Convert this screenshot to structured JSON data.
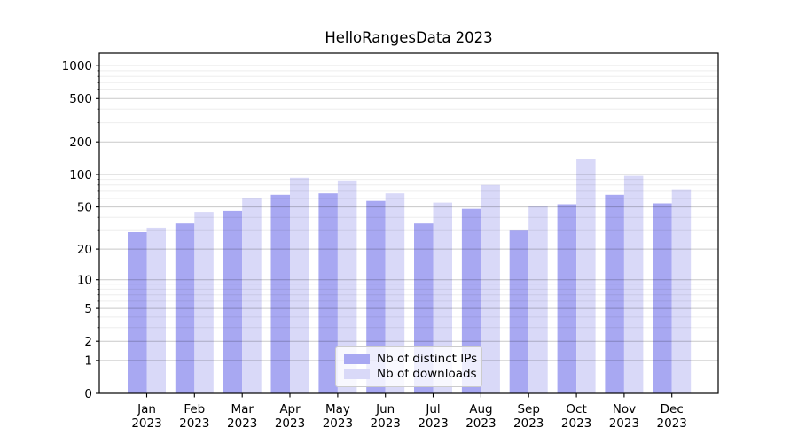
{
  "chart_data": {
    "type": "bar",
    "title": "HelloRangesData 2023",
    "categories": [
      "Jan",
      "Feb",
      "Mar",
      "Apr",
      "May",
      "Jun",
      "Jul",
      "Aug",
      "Sep",
      "Oct",
      "Nov",
      "Dec"
    ],
    "x_year_label": "2023",
    "series": [
      {
        "name": "Nb of distinct IPs",
        "color": "#a8a8f2",
        "values": [
          29,
          35,
          46,
          65,
          67,
          57,
          35,
          48,
          30,
          53,
          65,
          54
        ]
      },
      {
        "name": "Nb of downloads",
        "color": "#d9d9f8",
        "values": [
          32,
          45,
          61,
          93,
          88,
          67,
          55,
          80,
          51,
          140,
          97,
          73
        ]
      }
    ],
    "xlabel": "",
    "ylabel": "",
    "yscale": "log1p",
    "ylim": [
      0,
      1280
    ],
    "yticks": [
      0,
      1,
      2,
      5,
      10,
      20,
      50,
      100,
      200,
      500,
      1000
    ],
    "minor_yticks": [
      3,
      4,
      6,
      7,
      8,
      9,
      30,
      40,
      60,
      70,
      80,
      90,
      300,
      400,
      600,
      700,
      800,
      900
    ],
    "grid": {
      "major_color": "#c9c9c9",
      "minor_color": "#ededed",
      "drawn_above_bars": true
    },
    "legend": {
      "position": "lower center",
      "framed": true
    }
  }
}
